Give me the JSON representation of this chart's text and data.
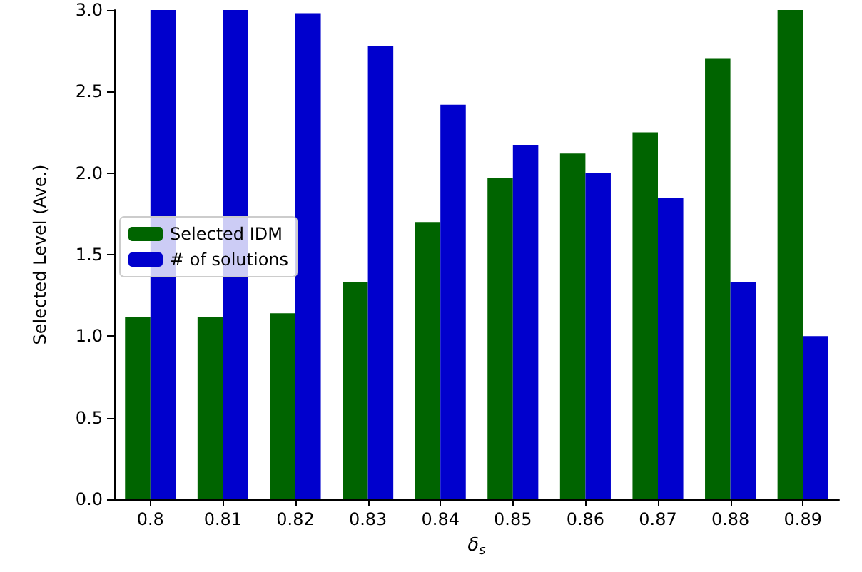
{
  "chart_data": {
    "type": "bar",
    "xlabel": "δ$_{s}$",
    "ylabel": "Selected Level (Ave.)",
    "categories": [
      "0.8",
      "0.81",
      "0.82",
      "0.83",
      "0.84",
      "0.85",
      "0.86",
      "0.87",
      "0.88",
      "0.89"
    ],
    "series": [
      {
        "name": "Selected IDM",
        "color": "#006400",
        "values": [
          1.12,
          1.12,
          1.14,
          1.33,
          1.7,
          1.97,
          2.12,
          2.25,
          2.7,
          3.0
        ]
      },
      {
        "name": "# of solutions",
        "color": "#0000cd",
        "values": [
          3.0,
          3.0,
          2.98,
          2.78,
          2.42,
          2.17,
          2.0,
          1.85,
          1.33,
          1.0
        ]
      }
    ],
    "ylim": [
      0,
      3.0
    ],
    "yticks": [
      {
        "value": 0,
        "label": "0.0"
      },
      0.5,
      {
        "value": 1,
        "label": "1.0"
      },
      1.5,
      {
        "value": 2,
        "label": "2.0"
      },
      2.5,
      {
        "value": 3,
        "label": "3.0"
      }
    ],
    "grid": false,
    "legend": "left"
  }
}
